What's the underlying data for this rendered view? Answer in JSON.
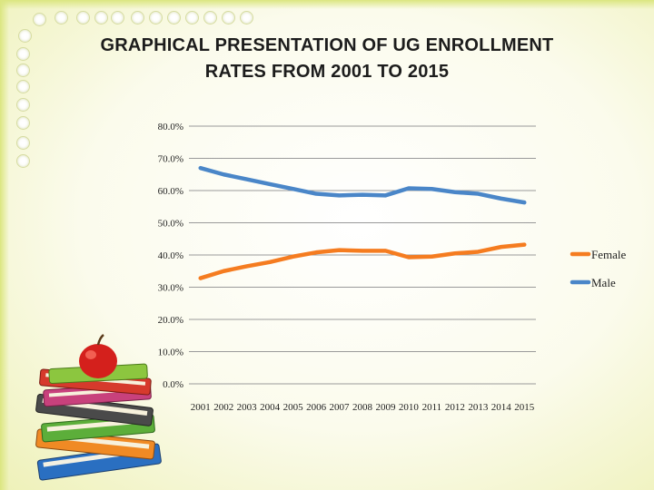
{
  "slide": {
    "title_line1": "GRAPHICAL PRESENTATION OF UG ENROLLMENT",
    "title_line2": "RATES FROM 2001 TO 2015"
  },
  "colors": {
    "female": "#f57c20",
    "male": "#4a86c8",
    "grid": "#9a9a9a",
    "accent_green": "#dbe680"
  },
  "icons": [
    "apple-icon",
    "book-stack-icon"
  ],
  "chart_data": {
    "type": "line",
    "title": "",
    "xlabel": "",
    "ylabel": "",
    "ylim": [
      0,
      80
    ],
    "y_ticks": [
      "0.0%",
      "10.0%",
      "20.0%",
      "30.0%",
      "40.0%",
      "50.0%",
      "60.0%",
      "70.0%",
      "80.0%"
    ],
    "y_tick_values": [
      0,
      10,
      20,
      30,
      40,
      50,
      60,
      70,
      80
    ],
    "categories": [
      "2001",
      "2002",
      "2003",
      "2004",
      "2005",
      "2006",
      "2007",
      "2008",
      "2009",
      "2010",
      "2011",
      "2012",
      "2013",
      "2014",
      "2015"
    ],
    "grid": true,
    "legend_position": "right",
    "series": [
      {
        "name": "Female",
        "color": "#f57c20",
        "values": [
          32.8,
          35.0,
          36.5,
          37.8,
          39.5,
          40.8,
          41.5,
          41.3,
          41.3,
          39.3,
          39.5,
          40.5,
          41.0,
          42.5,
          43.2
        ]
      },
      {
        "name": "Male",
        "color": "#4a86c8",
        "values": [
          67.0,
          65.0,
          63.5,
          62.0,
          60.5,
          59.0,
          58.5,
          58.7,
          58.5,
          60.7,
          60.5,
          59.5,
          59.0,
          57.5,
          56.3
        ]
      }
    ]
  }
}
